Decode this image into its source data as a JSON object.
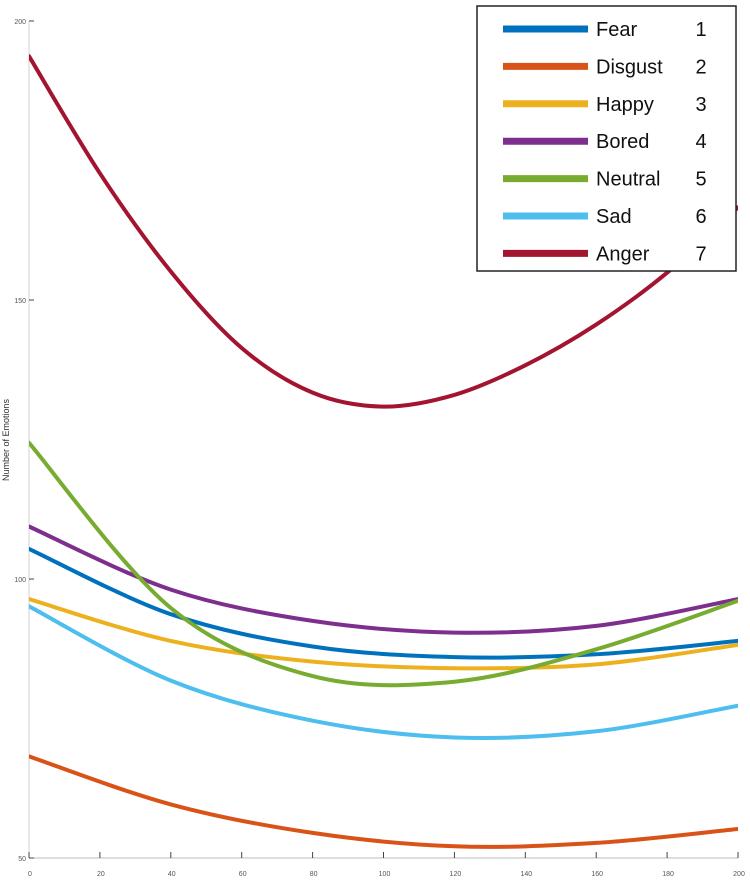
{
  "chart_data": {
    "type": "line",
    "title": "",
    "xlabel": "",
    "ylabel": "Number of Emotions",
    "xlim": [
      0,
      200
    ],
    "ylim": [
      50,
      200
    ],
    "xticks": [
      0,
      20,
      40,
      60,
      80,
      100,
      120,
      140,
      160,
      180,
      200
    ],
    "yticks": [
      50,
      100,
      150,
      200
    ],
    "grid": false,
    "legend_position": "top-right",
    "series": [
      {
        "name": "Fear",
        "index": "1",
        "color": "#0072BD",
        "x": [
          0,
          40,
          80,
          120,
          160,
          200
        ],
        "y": [
          105.4,
          93.7,
          87.9,
          86.0,
          86.5,
          88.9
        ]
      },
      {
        "name": "Disgust",
        "index": "2",
        "color": "#D95319",
        "x": [
          0,
          40,
          80,
          120,
          160,
          200
        ],
        "y": [
          68.2,
          59.6,
          54.5,
          52.1,
          52.7,
          55.2
        ]
      },
      {
        "name": "Happy",
        "index": "3",
        "color": "#EDB120",
        "x": [
          0,
          40,
          80,
          120,
          160,
          200
        ],
        "y": [
          96.4,
          88.9,
          85.2,
          84.0,
          84.7,
          88.2
        ]
      },
      {
        "name": "Bored",
        "index": "4",
        "color": "#7E2F8E",
        "x": [
          0,
          40,
          80,
          120,
          160,
          200
        ],
        "y": [
          109.4,
          98.1,
          92.5,
          90.4,
          91.6,
          96.4
        ]
      },
      {
        "name": "Neutral",
        "index": "5",
        "color": "#77AC30",
        "x": [
          0,
          40,
          80,
          120,
          160,
          200
        ],
        "y": [
          124.4,
          94.8,
          82.6,
          81.6,
          87.4,
          96.1
        ]
      },
      {
        "name": "Sad",
        "index": "6",
        "color": "#4DBEEE",
        "x": [
          0,
          40,
          80,
          120,
          160,
          200
        ],
        "y": [
          95.1,
          81.8,
          74.6,
          71.6,
          72.7,
          77.3
        ]
      },
      {
        "name": "Anger",
        "index": "7",
        "color": "#A2142F",
        "x": [
          0,
          20,
          40,
          60,
          80,
          100,
          120,
          140,
          160,
          180,
          200
        ],
        "y": [
          193.7,
          172.7,
          155.1,
          141.4,
          133.4,
          130.9,
          133.0,
          138.3,
          145.6,
          154.9,
          166.6
        ]
      }
    ]
  }
}
